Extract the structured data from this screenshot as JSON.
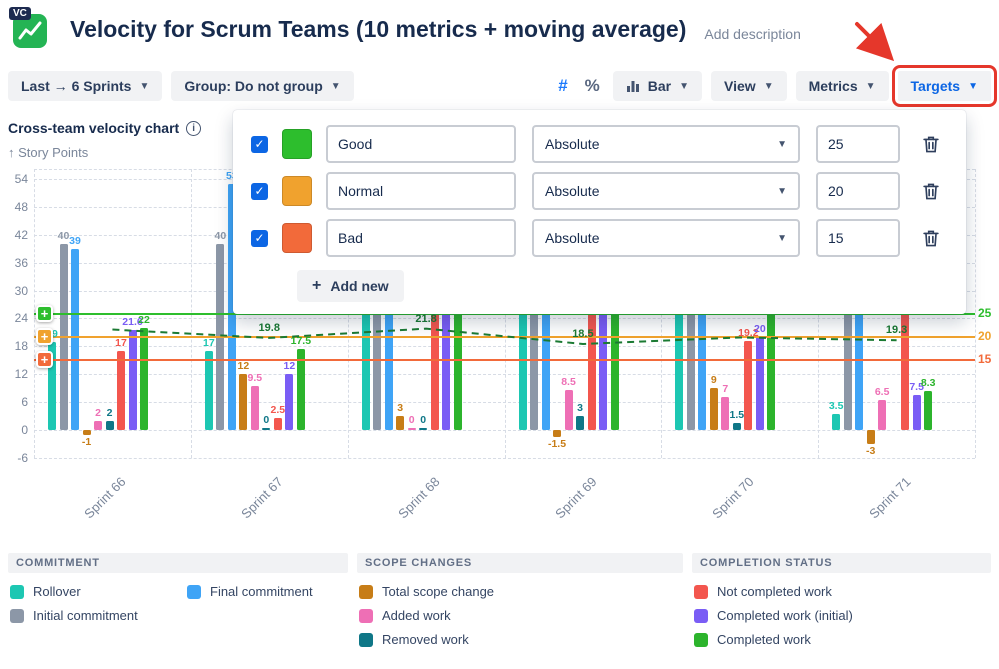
{
  "header": {
    "app_badge": "VC",
    "title": "Velocity for Scrum Teams (10 metrics + moving average)",
    "add_description_label": "Add description"
  },
  "toolbar": {
    "sprints_label": "Last → 6 Sprints",
    "group_label": "Group: Do not group",
    "hash_label": "#",
    "percent_label": "%",
    "chart_type_label": "Bar",
    "view_label": "View",
    "metrics_label": "Metrics",
    "targets_label": "Targets"
  },
  "chart_header": {
    "title": "Cross-team velocity chart",
    "y_axis_label": "↑ Story Points"
  },
  "targets_popup": {
    "add_new_label": "Add new",
    "rows": [
      {
        "checked": true,
        "color": "#2dbe2d",
        "name": "Good",
        "mode": "Absolute",
        "value": "25"
      },
      {
        "checked": true,
        "color": "#f0a22e",
        "name": "Normal",
        "mode": "Absolute",
        "value": "20"
      },
      {
        "checked": true,
        "color": "#f26a3a",
        "name": "Bad",
        "mode": "Absolute",
        "value": "15"
      }
    ]
  },
  "chart_data": {
    "type": "bar",
    "title": "Cross-team velocity chart",
    "ylabel": "Story Points",
    "ylim": [
      -6,
      54
    ],
    "y_ticks": [
      54,
      48,
      42,
      36,
      30,
      24,
      18,
      12,
      6,
      0,
      -6
    ],
    "categories": [
      "Sprint 66",
      "Sprint 67",
      "Sprint 68",
      "Sprint 69",
      "Sprint 70",
      "Sprint 71"
    ],
    "series": [
      {
        "name": "Rollover",
        "color": "#1dc7b2",
        "values": [
          19,
          17,
          "occ",
          "occ",
          "occ",
          3.5
        ]
      },
      {
        "name": "Initial commitment",
        "color": "#8c97a7",
        "values": [
          40,
          40,
          "occ",
          "occ",
          "occ",
          "occ"
        ]
      },
      {
        "name": "Final commitment",
        "color": "#3fa4f6",
        "values": [
          39,
          53,
          "occ",
          "occ",
          "occ",
          "occ"
        ]
      },
      {
        "name": "Total scope change",
        "color": "#c77d17",
        "values": [
          -1,
          12,
          3,
          -1.5,
          9,
          -3
        ]
      },
      {
        "name": "Added work",
        "color": "#ee6fb5",
        "values": [
          2,
          9.5,
          0,
          8.5,
          7,
          6.5
        ]
      },
      {
        "name": "Removed work",
        "color": "#0f7787",
        "values": [
          2,
          0,
          0,
          3,
          1.5,
          null
        ]
      },
      {
        "name": "Not completed work",
        "color": "#f3564e",
        "values": [
          17,
          2.5,
          "occ",
          "occ",
          19.2,
          "occ"
        ]
      },
      {
        "name": "Completed work (initial)",
        "color": "#7a5df5",
        "values": [
          21.6,
          12,
          "occ",
          "occ",
          20,
          7.5
        ]
      },
      {
        "name": "Completed work",
        "color": "#2cb42c",
        "values": [
          22,
          17.5,
          "occ",
          "occ",
          "occ",
          8.3
        ]
      }
    ],
    "moving_average": {
      "name": "Moving average",
      "color": "#1b7a33",
      "values": [
        21.6,
        19.8,
        21.8,
        18.5,
        19.9,
        19.3
      ],
      "labeled": [
        false,
        true,
        true,
        true,
        false,
        true
      ]
    },
    "targets": [
      {
        "name": "Good",
        "value": 25,
        "color": "#2dbe2d"
      },
      {
        "name": "Normal",
        "value": 20,
        "color": "#f0a22e"
      },
      {
        "name": "Bad",
        "value": 15,
        "color": "#f26a3a"
      }
    ]
  },
  "legend": {
    "groups": [
      {
        "title": "COMMITMENT",
        "two_col": true,
        "items": [
          {
            "label": "Rollover",
            "color": "#1dc7b2"
          },
          {
            "label": "Final commitment",
            "color": "#3fa4f6"
          },
          {
            "label": "Initial commitment",
            "color": "#8c97a7"
          }
        ]
      },
      {
        "title": "SCOPE CHANGES",
        "two_col": false,
        "items": [
          {
            "label": "Total scope change",
            "color": "#c77d17"
          },
          {
            "label": "Added work",
            "color": "#ee6fb5"
          },
          {
            "label": "Removed work",
            "color": "#0f7787"
          }
        ]
      },
      {
        "title": "COMPLETION STATUS",
        "two_col": false,
        "items": [
          {
            "label": "Not completed work",
            "color": "#f3564e"
          },
          {
            "label": "Completed work (initial)",
            "color": "#7a5df5"
          },
          {
            "label": "Completed work",
            "color": "#2cb42c"
          }
        ]
      }
    ]
  },
  "annotation_color": "#e5372b"
}
